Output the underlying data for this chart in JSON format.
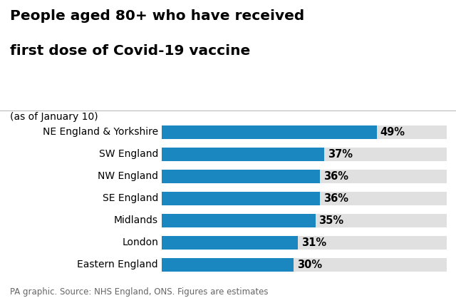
{
  "title_line1": "People aged 80+ who have received",
  "title_line2": "first dose of Covid-19 vaccine",
  "subtitle": "(as of January 10)",
  "footer": "PA graphic. Source: NHS England, ONS. Figures are estimates",
  "categories": [
    "NE England & Yorkshire",
    "SW England",
    "NW England",
    "SE England",
    "Midlands",
    "London",
    "Eastern England"
  ],
  "values": [
    49,
    37,
    36,
    36,
    35,
    31,
    30
  ],
  "bar_color": "#1a87c0",
  "bar_bg_color": "#e0e0e0",
  "title_color": "#000000",
  "subtitle_color": "#000000",
  "footer_color": "#666666",
  "label_color": "#000000",
  "background_color": "#ffffff",
  "xlim_max": 65,
  "bar_height": 0.62,
  "title_fontsize": 14.5,
  "subtitle_fontsize": 10,
  "label_fontsize": 10,
  "value_fontsize": 10.5,
  "footer_fontsize": 8.5
}
